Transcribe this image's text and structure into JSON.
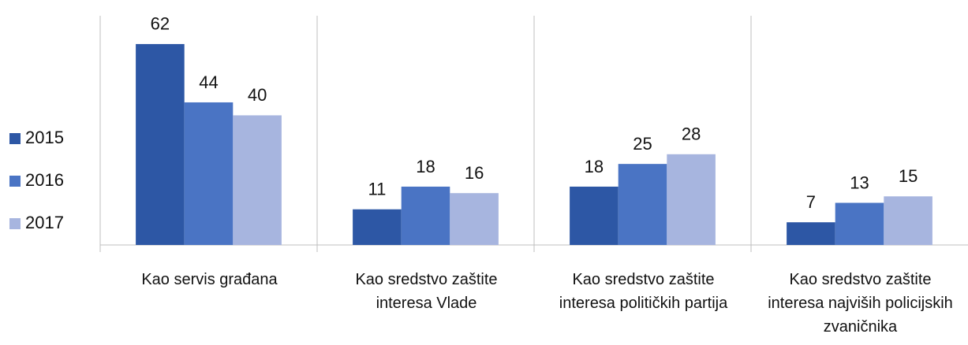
{
  "chart_data": {
    "type": "bar",
    "categories": [
      "Kao servis građana",
      "Kao sredstvo zaštite\ninteresa Vlade",
      "Kao sredstvo zaštite\ninteresa političkih partija",
      "Kao sredstvo zaštite\ninteresa najviših policijskih\nzvaničnika"
    ],
    "series": [
      {
        "name": "2015",
        "color": "#2d57a5",
        "values": [
          62,
          11,
          18,
          7
        ]
      },
      {
        "name": "2016",
        "color": "#4a74c4",
        "values": [
          44,
          18,
          25,
          13
        ]
      },
      {
        "name": "2017",
        "color": "#a7b5df",
        "values": [
          40,
          16,
          28,
          15
        ]
      }
    ],
    "ylim": [
      0,
      70
    ],
    "legend": "left",
    "grid": false
  }
}
